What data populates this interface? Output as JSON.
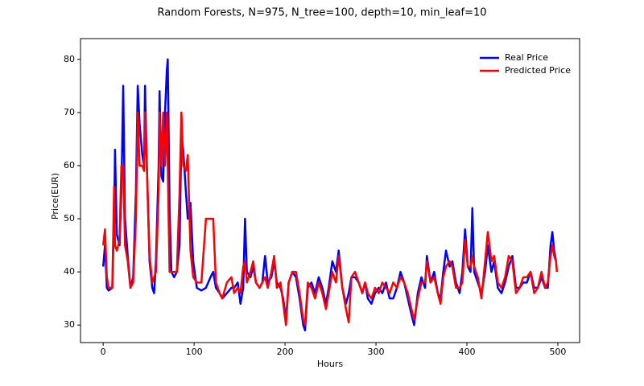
{
  "chart_data": {
    "type": "line",
    "title": "Random Forests, N=975, N_tree=100, depth=10, min_leaf=10",
    "x_label": "Hours",
    "y_label": "Price(EUR)",
    "xlim": [
      -24.95,
      523.95
    ],
    "ylim": [
      26.7,
      83.9
    ],
    "xticks": [
      0,
      100,
      200,
      300,
      400,
      500
    ],
    "yticks": [
      30,
      40,
      50,
      60,
      70,
      80
    ],
    "legend": "upper right",
    "x": [
      0,
      2,
      4,
      6,
      10,
      12,
      13,
      15,
      18,
      20,
      22,
      24,
      27,
      30,
      33,
      36,
      38,
      40,
      43,
      45,
      46,
      48,
      51,
      54,
      56,
      58,
      61,
      62,
      64,
      66,
      68,
      70,
      71,
      73,
      75,
      78,
      81,
      84,
      86,
      88,
      91,
      93,
      96,
      99,
      103,
      108,
      113,
      118,
      121,
      124,
      128,
      131,
      136,
      141,
      144,
      148,
      151,
      154,
      156,
      158,
      162,
      165,
      168,
      172,
      175,
      178,
      181,
      185,
      188,
      191,
      195,
      198,
      201,
      204,
      208,
      212,
      216,
      220,
      222,
      225,
      229,
      233,
      237,
      241,
      245,
      248,
      252,
      256,
      259,
      263,
      267,
      270,
      273,
      277,
      281,
      285,
      288,
      291,
      295,
      299,
      303,
      307,
      311,
      315,
      319,
      323,
      327,
      331,
      335,
      339,
      342,
      346,
      350,
      354,
      356,
      360,
      364,
      368,
      371,
      374,
      377,
      381,
      384,
      388,
      392,
      395,
      398,
      401,
      404,
      406,
      408,
      412,
      416,
      420,
      423,
      427,
      430,
      434,
      438,
      442,
      446,
      450,
      454,
      458,
      462,
      466,
      470,
      474,
      478,
      482,
      486,
      489,
      492,
      494,
      496,
      498,
      499
    ],
    "series": [
      {
        "name": "Real Price",
        "color": "#0000ff",
        "values": [
          41,
          45,
          37,
          36.5,
          37,
          50,
          63,
          47,
          45,
          55,
          75,
          50,
          43,
          37,
          39,
          55,
          75,
          68,
          62,
          60,
          75,
          60,
          42,
          37,
          36,
          42,
          60,
          74,
          58,
          57,
          70,
          78,
          80,
          52,
          40,
          39,
          40,
          45,
          66,
          63,
          55,
          50,
          53,
          42,
          37,
          36.5,
          37,
          39,
          40,
          37,
          36,
          35,
          36,
          37,
          37,
          38,
          34,
          37,
          50,
          40,
          39,
          41,
          38,
          37,
          38,
          43,
          38,
          39,
          42,
          38,
          37,
          35,
          31,
          38,
          40,
          39,
          35,
          30,
          29,
          37,
          38,
          36,
          39,
          37,
          34,
          37,
          42,
          40,
          44,
          37,
          34,
          36,
          39,
          39,
          38,
          36,
          38,
          35,
          34,
          36,
          37,
          36,
          38,
          35,
          35,
          37,
          40,
          38,
          35,
          32,
          30,
          36,
          39,
          37,
          43,
          38,
          40,
          36,
          35,
          40,
          44,
          41,
          42,
          38,
          36,
          40,
          48,
          41,
          40,
          52,
          40,
          38,
          36,
          40,
          45,
          40,
          42,
          37,
          36,
          38,
          41,
          43,
          37,
          37,
          38,
          38,
          40,
          37,
          37,
          39,
          37,
          37,
          45,
          47.5,
          44,
          42,
          42
        ]
      },
      {
        "name": "Predicted Price",
        "color": "#ff0000",
        "values": [
          45,
          48,
          39,
          37,
          37,
          56,
          45,
          44,
          46,
          60,
          60,
          45,
          42,
          37,
          38,
          50,
          70,
          60,
          60,
          59,
          70,
          60,
          43,
          38,
          39,
          40,
          55,
          70,
          60,
          70,
          60,
          70,
          60,
          40,
          40,
          40,
          40,
          55,
          70,
          60,
          59,
          62,
          44,
          39,
          38,
          38,
          50,
          50,
          50,
          38,
          36,
          35,
          38,
          39,
          36,
          37,
          36,
          41,
          42,
          38,
          40,
          42,
          38,
          37,
          38,
          39,
          37,
          40,
          43,
          37,
          38,
          34,
          30,
          38,
          40,
          40,
          36,
          31,
          30,
          38,
          37,
          35,
          38,
          36,
          33,
          36,
          40,
          38,
          43,
          37,
          33,
          30.5,
          39,
          40,
          38,
          36,
          38,
          36,
          35,
          37,
          36,
          38,
          37,
          36,
          38,
          37,
          39,
          38,
          36,
          33,
          31,
          35,
          38,
          38,
          42,
          38,
          39,
          36,
          34,
          39,
          41,
          42,
          41,
          37,
          37,
          38,
          46,
          41,
          41,
          43,
          41,
          39,
          35,
          42,
          47.5,
          42,
          43,
          38,
          37,
          39,
          43,
          42,
          36,
          37,
          39,
          39,
          40,
          36,
          37,
          40,
          37,
          38,
          43,
          45,
          43,
          42,
          40
        ]
      }
    ]
  }
}
